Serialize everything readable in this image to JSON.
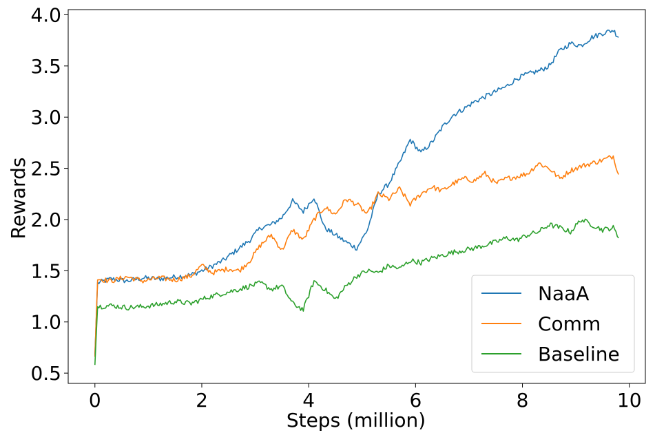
{
  "chart_data": {
    "type": "line",
    "title": "",
    "xlabel": "Steps (million)",
    "ylabel": "Rewards",
    "xlim": [
      -0.5,
      10.3
    ],
    "ylim": [
      0.4,
      4.05
    ],
    "xticks": [
      0,
      2,
      4,
      6,
      8,
      10
    ],
    "yticks": [
      0.5,
      1.0,
      1.5,
      2.0,
      2.5,
      3.0,
      3.5,
      4.0
    ],
    "xtick_labels": [
      "0",
      "2",
      "4",
      "6",
      "8",
      "10"
    ],
    "ytick_labels": [
      "0.5",
      "1.0",
      "1.5",
      "2.0",
      "2.5",
      "3.0",
      "3.5",
      "4.0"
    ],
    "grid": false,
    "legend_position": "lower-right",
    "series": [
      {
        "name": "NaaA",
        "color": "#1f77b4",
        "x": [
          0,
          0.05,
          0.3,
          0.6,
          0.9,
          1.2,
          1.5,
          1.8,
          2.1,
          2.4,
          2.7,
          2.9,
          3.1,
          3.3,
          3.5,
          3.7,
          3.9,
          4.1,
          4.3,
          4.5,
          4.7,
          4.9,
          5.1,
          5.3,
          5.5,
          5.7,
          5.9,
          6.1,
          6.3,
          6.5,
          6.7,
          6.9,
          7.1,
          7.3,
          7.5,
          7.7,
          7.9,
          8.1,
          8.3,
          8.5,
          8.7,
          8.9,
          9.1,
          9.3,
          9.5,
          9.7,
          9.8
        ],
        "y": [
          0.68,
          1.38,
          1.42,
          1.4,
          1.43,
          1.42,
          1.44,
          1.46,
          1.52,
          1.6,
          1.72,
          1.8,
          1.92,
          1.95,
          2.02,
          2.18,
          2.08,
          2.22,
          1.92,
          1.85,
          1.78,
          1.72,
          1.9,
          2.25,
          2.35,
          2.55,
          2.78,
          2.65,
          2.75,
          2.9,
          3.02,
          3.08,
          3.15,
          3.2,
          3.25,
          3.3,
          3.38,
          3.42,
          3.45,
          3.5,
          3.65,
          3.72,
          3.7,
          3.78,
          3.82,
          3.85,
          3.78
        ]
      },
      {
        "name": "Comm",
        "color": "#ff7f0e",
        "x": [
          0,
          0.05,
          0.3,
          0.6,
          0.9,
          1.2,
          1.5,
          1.8,
          2.0,
          2.2,
          2.5,
          2.7,
          2.9,
          3.1,
          3.3,
          3.5,
          3.7,
          3.9,
          4.1,
          4.3,
          4.5,
          4.7,
          4.9,
          5.1,
          5.3,
          5.5,
          5.7,
          5.9,
          6.1,
          6.3,
          6.5,
          6.7,
          6.9,
          7.1,
          7.3,
          7.5,
          7.7,
          7.9,
          8.1,
          8.3,
          8.5,
          8.7,
          8.9,
          9.1,
          9.3,
          9.5,
          9.7,
          9.8
        ],
        "y": [
          0.66,
          1.42,
          1.4,
          1.44,
          1.4,
          1.43,
          1.41,
          1.45,
          1.55,
          1.48,
          1.52,
          1.5,
          1.6,
          1.75,
          1.85,
          1.7,
          1.9,
          1.8,
          2.0,
          2.12,
          2.05,
          2.2,
          2.15,
          2.05,
          2.25,
          2.2,
          2.3,
          2.15,
          2.25,
          2.32,
          2.28,
          2.35,
          2.4,
          2.38,
          2.45,
          2.35,
          2.4,
          2.42,
          2.45,
          2.55,
          2.5,
          2.4,
          2.48,
          2.52,
          2.55,
          2.58,
          2.62,
          2.44
        ]
      },
      {
        "name": "Baseline",
        "color": "#2ca02c",
        "x": [
          0,
          0.05,
          0.3,
          0.6,
          0.9,
          1.2,
          1.5,
          1.8,
          2.1,
          2.4,
          2.7,
          2.9,
          3.1,
          3.3,
          3.5,
          3.7,
          3.9,
          4.1,
          4.3,
          4.5,
          4.7,
          4.9,
          5.1,
          5.3,
          5.5,
          5.7,
          5.9,
          6.1,
          6.3,
          6.5,
          6.7,
          6.9,
          7.1,
          7.3,
          7.5,
          7.7,
          7.9,
          8.1,
          8.3,
          8.5,
          8.7,
          8.9,
          9.1,
          9.3,
          9.5,
          9.7,
          9.8
        ],
        "y": [
          0.58,
          1.15,
          1.16,
          1.14,
          1.15,
          1.17,
          1.2,
          1.18,
          1.24,
          1.28,
          1.32,
          1.35,
          1.38,
          1.32,
          1.35,
          1.18,
          1.12,
          1.4,
          1.32,
          1.22,
          1.35,
          1.45,
          1.5,
          1.48,
          1.55,
          1.52,
          1.6,
          1.58,
          1.62,
          1.65,
          1.68,
          1.7,
          1.72,
          1.75,
          1.78,
          1.82,
          1.8,
          1.85,
          1.88,
          1.95,
          1.92,
          1.88,
          2.0,
          1.95,
          1.9,
          1.92,
          1.82
        ]
      }
    ]
  }
}
